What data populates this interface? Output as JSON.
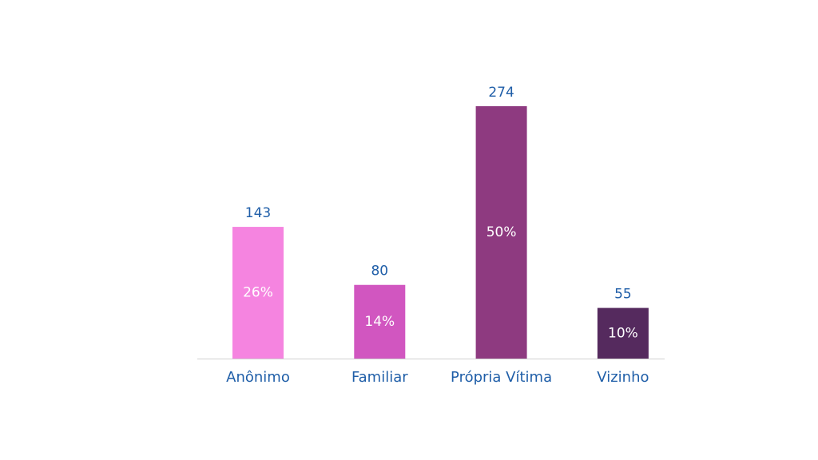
{
  "chart_data": {
    "type": "bar",
    "categories": [
      "Anônimo",
      "Familiar",
      "Própria Vítima",
      "Vizinho"
    ],
    "values": [
      143,
      80,
      274,
      55
    ],
    "colors": [
      "#f584e0",
      "#d156c0",
      "#8e3a80",
      "#552a5e"
    ],
    "shares": {
      "values": [
        26,
        14,
        50,
        10
      ],
      "value_labels": [
        "26%",
        "14%",
        "50%",
        "10%"
      ]
    }
  }
}
